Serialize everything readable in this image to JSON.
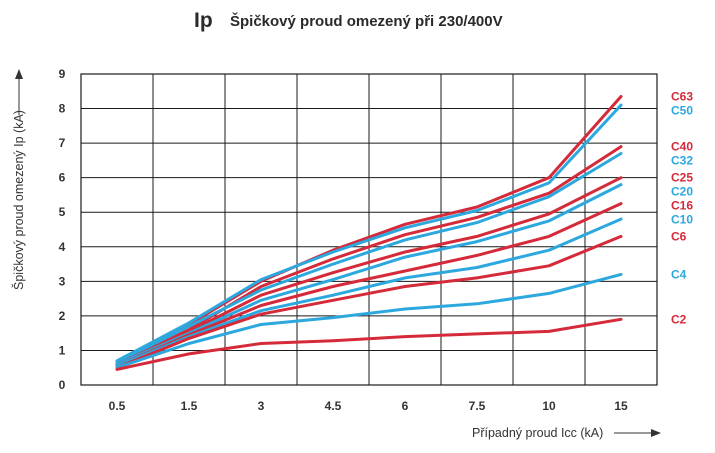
{
  "header": {
    "symbol": "Ip",
    "subtitle": "Špičkový proud omezený při 230/400V"
  },
  "chart_data": {
    "type": "line",
    "title": "Špičkový proud omezený při 230/400V",
    "xlabel": "Případný proud Icc (kA)",
    "ylabel": "Špičkový proud omezený Ip (kA)",
    "categories": [
      "0.5",
      "1.5",
      "3",
      "4.5",
      "6",
      "7.5",
      "10",
      "15"
    ],
    "yticks": [
      "0",
      "1",
      "2",
      "3",
      "4",
      "5",
      "6",
      "7",
      "8",
      "9"
    ],
    "ylim": [
      0,
      9
    ],
    "grid": true,
    "legend_position": "right, at line ends",
    "series": [
      {
        "name": "C63",
        "color": "#d42a3a",
        "values": [
          0.55,
          1.75,
          3.0,
          3.9,
          4.65,
          5.15,
          6.0,
          8.35
        ]
      },
      {
        "name": "C50",
        "color": "#2ca8df",
        "values": [
          0.7,
          1.8,
          3.05,
          3.85,
          4.55,
          5.05,
          5.85,
          8.1
        ]
      },
      {
        "name": "C40",
        "color": "#d42a3a",
        "values": [
          0.6,
          1.6,
          2.85,
          3.65,
          4.35,
          4.85,
          5.55,
          6.9
        ]
      },
      {
        "name": "C32",
        "color": "#2ca8df",
        "values": [
          0.65,
          1.7,
          2.75,
          3.5,
          4.2,
          4.7,
          5.45,
          6.7
        ]
      },
      {
        "name": "C25",
        "color": "#d42a3a",
        "values": [
          0.6,
          1.55,
          2.6,
          3.25,
          3.85,
          4.3,
          4.95,
          6.0
        ]
      },
      {
        "name": "C20",
        "color": "#2ca8df",
        "values": [
          0.6,
          1.5,
          2.45,
          3.05,
          3.7,
          4.15,
          4.75,
          5.8
        ]
      },
      {
        "name": "C16",
        "color": "#d42a3a",
        "values": [
          0.55,
          1.45,
          2.3,
          2.85,
          3.3,
          3.75,
          4.3,
          5.25
        ]
      },
      {
        "name": "C10",
        "color": "#2ca8df",
        "values": [
          0.55,
          1.4,
          2.15,
          2.6,
          3.1,
          3.4,
          3.9,
          4.8
        ]
      },
      {
        "name": "C6",
        "color": "#d42a3a",
        "values": [
          0.5,
          1.35,
          2.05,
          2.45,
          2.85,
          3.1,
          3.45,
          4.3
        ]
      },
      {
        "name": "C4",
        "color": "#2ca8df",
        "values": [
          0.5,
          1.2,
          1.75,
          1.95,
          2.2,
          2.35,
          2.65,
          3.2
        ]
      },
      {
        "name": "C2",
        "color": "#d42a3a",
        "values": [
          0.45,
          0.9,
          1.2,
          1.28,
          1.4,
          1.48,
          1.55,
          1.9
        ]
      }
    ]
  }
}
